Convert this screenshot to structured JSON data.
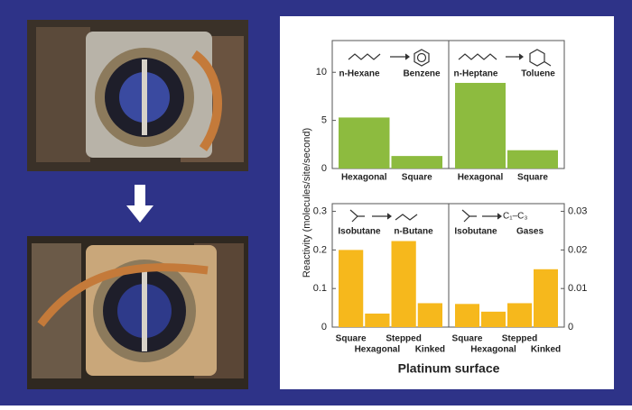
{
  "y_label": "Reactivity (molecules/site/second)",
  "x_label": "Platinum surface",
  "chart_data": [
    {
      "type": "bar",
      "reactant": "n-Hexane",
      "product": "Benzene",
      "categories": [
        "Hexagonal",
        "Square"
      ],
      "values": [
        5.3,
        1.3
      ],
      "color": "#8dbb3f",
      "ylim": [
        0,
        13.3
      ],
      "yticks": [
        0,
        5,
        10
      ]
    },
    {
      "type": "bar",
      "reactant": "n-Heptane",
      "product": "Toluene",
      "categories": [
        "Hexagonal",
        "Square"
      ],
      "values": [
        8.9,
        1.9
      ],
      "color": "#8dbb3f",
      "ylim": [
        0,
        13.3
      ]
    },
    {
      "type": "bar",
      "reactant": "Isobutane",
      "product": "n-Butane",
      "categories": [
        "Square",
        "Hexagonal",
        "Stepped",
        "Kinked"
      ],
      "values": [
        0.2,
        0.035,
        0.223,
        0.062
      ],
      "color": "#f6b81c",
      "ylim": [
        0,
        0.32
      ],
      "yticks": [
        0,
        0.1,
        0.2,
        0.3
      ]
    },
    {
      "type": "bar",
      "reactant": "Isobutane",
      "product": "Gases",
      "product_formula": "C₁–C₃",
      "categories": [
        "Square",
        "Hexagonal",
        "Stepped",
        "Kinked"
      ],
      "values": [
        0.006,
        0.004,
        0.0062,
        0.015
      ],
      "color": "#f6b81c",
      "axis": "y2",
      "y2lim": [
        0,
        0.032
      ],
      "y2ticks": [
        0,
        0.01,
        0.02,
        0.03
      ]
    }
  ]
}
